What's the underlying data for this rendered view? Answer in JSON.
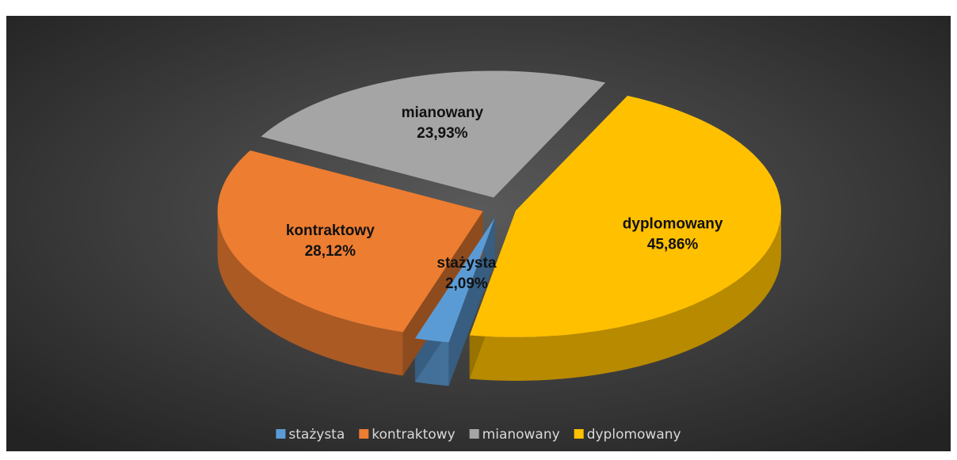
{
  "chart_data": {
    "type": "pie3d",
    "categories": [
      "stażysta",
      "kontraktowy",
      "mianowany",
      "dyplomowany"
    ],
    "values": [
      2.09,
      28.12,
      23.93,
      45.86
    ],
    "value_labels": [
      "2,09%",
      "28,12%",
      "23,93%",
      "45,86%"
    ],
    "colors": [
      "#5b9bd5",
      "#ed7d31",
      "#a5a5a5",
      "#ffc000"
    ],
    "legend": "bottom"
  }
}
